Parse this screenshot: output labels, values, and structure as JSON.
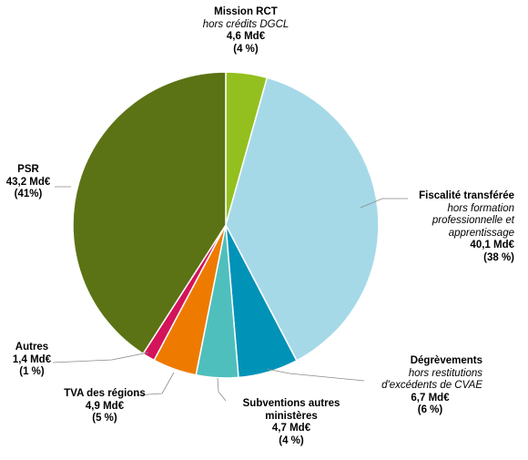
{
  "chart_data": {
    "type": "pie",
    "unit": "Md€",
    "slices": [
      {
        "name": "Mission RCT",
        "sub": [
          "hors crédits DGCL"
        ],
        "value_label": "4,6 Md€",
        "pct_label": "(4 %)",
        "value": 4.6,
        "color": "#93c01f"
      },
      {
        "name": "Fiscalité transférée",
        "sub": [
          "hors formation",
          "professionnelle et",
          "apprentissage"
        ],
        "value_label": "40,1 Md€",
        "pct_label": "(38 %)",
        "value": 40.1,
        "color": "#a6d9e8"
      },
      {
        "name": "Dégrèvements",
        "sub": [
          "hors restitutions",
          "d'excédents de CVAE"
        ],
        "value_label": "6,7 Md€",
        "pct_label": "(6 %)",
        "value": 6.7,
        "color": "#0093b7"
      },
      {
        "name": "Subventions autres",
        "name2": "ministères",
        "sub": [],
        "value_label": "4,7 Md€",
        "pct_label": "(4 %)",
        "value": 4.7,
        "color": "#4fbfbd"
      },
      {
        "name": "TVA des régions",
        "sub": [],
        "value_label": "4,9 Md€",
        "pct_label": "(5 %)",
        "value": 4.9,
        "color": "#ee7b00"
      },
      {
        "name": "Autres",
        "sub": [],
        "value_label": "1,4 Md€",
        "pct_label": "(1 %)",
        "value": 1.4,
        "color": "#d3135a"
      },
      {
        "name": "PSR",
        "sub": [],
        "value_label": "43,2 Md€",
        "pct_label": "(41%)",
        "value": 43.2,
        "color": "#5b7314"
      }
    ]
  }
}
